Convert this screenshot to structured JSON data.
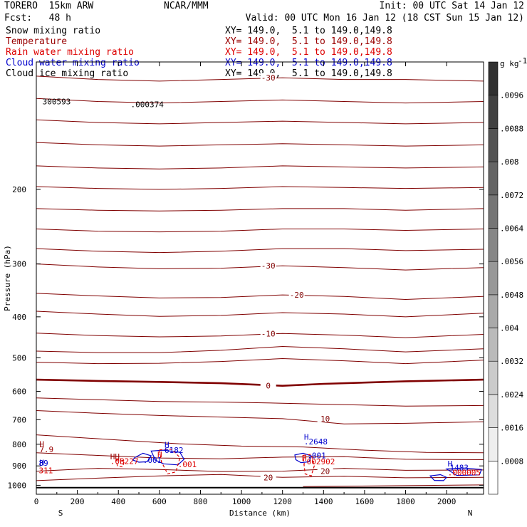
{
  "header": {
    "model": "TORERO  15km ARW",
    "center": "NCAR/MMM",
    "init": "Init: 00 UTC Sat 14 Jan 12",
    "fcst": "Fcst:   48 h",
    "valid": "Valid: 00 UTC Mon 16 Jan 12 (18 CST Sun 15 Jan 12)"
  },
  "fields": [
    {
      "label": "Snow mixing ratio",
      "xy": "XY= 149.0,  5.1 to 149.0,149.8",
      "color": "#000000"
    },
    {
      "label": "Temperature",
      "xy": "XY= 149.0,  5.1 to 149.0,149.8",
      "color": "#990000"
    },
    {
      "label": "Rain water mixing ratio",
      "xy": "XY= 149.0,  5.1 to 149.0,149.8",
      "color": "#dd0000"
    },
    {
      "label": "Cloud water mixing ratio",
      "xy": "XY= 149.0,  5.1 to 149.0,149.8",
      "color": "#0000cc"
    },
    {
      "label": "Cloud ice mixing ratio",
      "xy": "XY= 149.0,  5.1 to 149.0,149.8",
      "color": "#000000"
    }
  ],
  "chart_data": {
    "type": "contour",
    "xlabel": "Distance (km)",
    "ylabel": "Pressure (hPa)",
    "xlim": [
      0,
      2180
    ],
    "ylim": [
      1050,
      100
    ],
    "y_scale": "log",
    "x_ticks": [
      0,
      200,
      400,
      600,
      800,
      1000,
      1200,
      1400,
      1600,
      1800,
      2000
    ],
    "y_ticks": [
      200,
      300,
      400,
      500,
      600,
      700,
      800,
      900,
      1000
    ],
    "x_end_labels": {
      "left": "S",
      "right": "N"
    },
    "colorbar": {
      "unit": "g kg",
      "unit_sup": "-1",
      "levels": [
        ".0008",
        ".0016",
        ".0024",
        ".0032",
        ".004",
        ".0048",
        ".0056",
        ".0064",
        ".0072",
        ".008",
        ".0088",
        ".0096"
      ],
      "color_low": "#ffffff",
      "color_high": "#303030"
    },
    "temperature_contours": [
      {
        "label": "-30",
        "points": [
          [
            0,
            108
          ],
          [
            300,
            110
          ],
          [
            600,
            111
          ],
          [
            900,
            110
          ],
          [
            1200,
            109
          ],
          [
            1500,
            110
          ],
          [
            1800,
            110
          ],
          [
            2180,
            111
          ]
        ]
      },
      {
        "label": "",
        "points": [
          [
            0,
            122
          ],
          [
            300,
            124
          ],
          [
            600,
            125
          ],
          [
            900,
            124
          ],
          [
            1200,
            123
          ],
          [
            1500,
            124
          ],
          [
            1800,
            125
          ],
          [
            2180,
            124
          ]
        ]
      },
      {
        "label": "",
        "points": [
          [
            0,
            137
          ],
          [
            300,
            139
          ],
          [
            600,
            140
          ],
          [
            900,
            139
          ],
          [
            1200,
            138
          ],
          [
            1500,
            139
          ],
          [
            1800,
            140
          ],
          [
            2180,
            139
          ]
        ]
      },
      {
        "label": "",
        "points": [
          [
            0,
            155
          ],
          [
            300,
            157
          ],
          [
            600,
            158
          ],
          [
            900,
            157
          ],
          [
            1200,
            156
          ],
          [
            1500,
            157
          ],
          [
            1800,
            158
          ],
          [
            2180,
            157
          ]
        ]
      },
      {
        "label": "",
        "points": [
          [
            0,
            176
          ],
          [
            300,
            178
          ],
          [
            600,
            179
          ],
          [
            900,
            178
          ],
          [
            1200,
            176
          ],
          [
            1500,
            177
          ],
          [
            1800,
            178
          ],
          [
            2180,
            177
          ]
        ]
      },
      {
        "label": "",
        "points": [
          [
            0,
            197
          ],
          [
            300,
            199
          ],
          [
            600,
            200
          ],
          [
            900,
            199
          ],
          [
            1200,
            197
          ],
          [
            1500,
            198
          ],
          [
            1800,
            199
          ],
          [
            2180,
            198
          ]
        ]
      },
      {
        "label": "",
        "points": [
          [
            0,
            222
          ],
          [
            300,
            224
          ],
          [
            600,
            225
          ],
          [
            900,
            224
          ],
          [
            1200,
            222
          ],
          [
            1500,
            222
          ],
          [
            1800,
            224
          ],
          [
            2180,
            222
          ]
        ]
      },
      {
        "label": "",
        "points": [
          [
            0,
            248
          ],
          [
            300,
            251
          ],
          [
            600,
            252
          ],
          [
            900,
            251
          ],
          [
            1200,
            248
          ],
          [
            1500,
            248
          ],
          [
            1800,
            250
          ],
          [
            2180,
            248
          ]
        ]
      },
      {
        "label": "",
        "points": [
          [
            0,
            276
          ],
          [
            300,
            280
          ],
          [
            600,
            282
          ],
          [
            900,
            280
          ],
          [
            1200,
            276
          ],
          [
            1500,
            276
          ],
          [
            1800,
            279
          ],
          [
            2180,
            277
          ]
        ]
      },
      {
        "label": "-30",
        "points": [
          [
            0,
            300
          ],
          [
            300,
            305
          ],
          [
            600,
            308
          ],
          [
            900,
            307
          ],
          [
            1200,
            303
          ],
          [
            1500,
            306
          ],
          [
            1800,
            310
          ],
          [
            2180,
            306
          ]
        ]
      },
      {
        "label": "-20",
        "points": [
          [
            0,
            352
          ],
          [
            300,
            357
          ],
          [
            600,
            361
          ],
          [
            900,
            360
          ],
          [
            1200,
            355
          ],
          [
            1500,
            358
          ],
          [
            1800,
            364
          ],
          [
            2180,
            358
          ]
        ]
      },
      {
        "label": "",
        "points": [
          [
            0,
            388
          ],
          [
            300,
            394
          ],
          [
            600,
            399
          ],
          [
            900,
            397
          ],
          [
            1200,
            391
          ],
          [
            1500,
            394
          ],
          [
            1800,
            400
          ],
          [
            2180,
            392
          ]
        ]
      },
      {
        "label": "-10",
        "points": [
          [
            0,
            437
          ],
          [
            300,
            443
          ],
          [
            600,
            446
          ],
          [
            900,
            444
          ],
          [
            1200,
            438
          ],
          [
            1500,
            442
          ],
          [
            1800,
            448
          ],
          [
            2180,
            440
          ]
        ]
      },
      {
        "label": "",
        "points": [
          [
            0,
            482
          ],
          [
            300,
            486
          ],
          [
            600,
            486
          ],
          [
            900,
            480
          ],
          [
            1200,
            470
          ],
          [
            1500,
            476
          ],
          [
            1800,
            484
          ],
          [
            2180,
            476
          ]
        ]
      },
      {
        "label": "",
        "points": [
          [
            0,
            512
          ],
          [
            300,
            516
          ],
          [
            600,
            515
          ],
          [
            900,
            510
          ],
          [
            1200,
            502
          ],
          [
            1500,
            508
          ],
          [
            1800,
            516
          ],
          [
            2180,
            506
          ]
        ]
      },
      {
        "label": "0",
        "points": [
          [
            0,
            563
          ],
          [
            300,
            567
          ],
          [
            600,
            570
          ],
          [
            900,
            574
          ],
          [
            1200,
            582
          ],
          [
            1400,
            576
          ],
          [
            1800,
            568
          ],
          [
            2180,
            563
          ]
        ]
      },
      {
        "label": "",
        "points": [
          [
            0,
            622
          ],
          [
            300,
            628
          ],
          [
            600,
            634
          ],
          [
            900,
            636
          ],
          [
            1200,
            640
          ],
          [
            1500,
            645
          ],
          [
            1800,
            650
          ],
          [
            2180,
            648
          ]
        ]
      },
      {
        "label": "10",
        "points": [
          [
            0,
            666
          ],
          [
            300,
            676
          ],
          [
            600,
            684
          ],
          [
            900,
            690
          ],
          [
            1200,
            696
          ],
          [
            1500,
            716
          ],
          [
            1800,
            714
          ],
          [
            2180,
            708
          ]
        ]
      },
      {
        "label": "",
        "points": [
          [
            0,
            760
          ],
          [
            400,
            782
          ],
          [
            700,
            798
          ],
          [
            1000,
            808
          ],
          [
            1300,
            812
          ],
          [
            1600,
            826
          ],
          [
            1900,
            836
          ],
          [
            2180,
            838
          ]
        ]
      },
      {
        "label": "",
        "points": [
          [
            0,
            838
          ],
          [
            300,
            850
          ],
          [
            600,
            862
          ],
          [
            900,
            866
          ],
          [
            1200,
            858
          ],
          [
            1500,
            856
          ],
          [
            1800,
            868
          ],
          [
            2180,
            870
          ]
        ]
      },
      {
        "label": "20",
        "points": [
          [
            0,
            926
          ],
          [
            300,
            912
          ],
          [
            600,
            918
          ],
          [
            900,
            928
          ],
          [
            1200,
            926
          ],
          [
            1500,
            912
          ],
          [
            1800,
            922
          ],
          [
            2180,
            920
          ]
        ]
      },
      {
        "label": "20",
        "points": [
          [
            0,
            975
          ],
          [
            300,
            962
          ],
          [
            600,
            950
          ],
          [
            900,
            943
          ],
          [
            1200,
            958
          ],
          [
            1500,
            952
          ],
          [
            1800,
            960
          ],
          [
            2180,
            958
          ]
        ]
      },
      {
        "label": "",
        "points": [
          [
            1300,
            1007
          ],
          [
            1500,
            1005
          ],
          [
            1800,
            1002
          ],
          [
            2180,
            998
          ]
        ]
      }
    ],
    "annotations": [
      {
        "text": "H",
        "x": 15,
        "y": 812,
        "color": "#990000"
      },
      {
        "text": "7.9",
        "x": 15,
        "y": 835,
        "color": "#990000"
      },
      {
        "text": "H",
        "x": 15,
        "y": 898,
        "color": "#0000cc"
      },
      {
        "text": "89",
        "x": 12,
        "y": 900,
        "color": "#0000cc"
      },
      {
        "text": "311",
        "x": 12,
        "y": 936,
        "color": "#dd0000"
      },
      {
        "text": "HH",
        "x": 360,
        "y": 868,
        "color": "#990000"
      },
      {
        "text": ".0B227",
        "x": 360,
        "y": 890,
        "color": "#dd0000"
      },
      {
        "text": "H",
        "x": 625,
        "y": 815,
        "color": "#0000cc"
      },
      {
        "text": "6182",
        "x": 625,
        "y": 838,
        "color": "#0000cc"
      },
      {
        "text": "H",
        "x": 590,
        "y": 858,
        "color": "#dd0000"
      },
      {
        "text": ".001",
        "x": 520,
        "y": 885,
        "color": "#0000cc"
      },
      {
        "text": ".001",
        "x": 690,
        "y": 906,
        "color": "#dd0000"
      },
      {
        "text": "H",
        "x": 1305,
        "y": 780,
        "color": "#0000cc"
      },
      {
        "text": ".2648",
        "x": 1305,
        "y": 800,
        "color": "#0000cc"
      },
      {
        "text": ".001",
        "x": 1320,
        "y": 864,
        "color": "#0000cc"
      },
      {
        "text": "H",
        "x": 1295,
        "y": 876,
        "color": "#dd0000"
      },
      {
        "text": ".002902",
        "x": 1295,
        "y": 892,
        "color": "#dd0000"
      },
      {
        "text": "H",
        "x": 2005,
        "y": 902,
        "color": "#0000cc"
      },
      {
        "text": "1483",
        "x": 2015,
        "y": 922,
        "color": "#0000cc"
      },
      {
        "text": ".000005",
        "x": 2005,
        "y": 948,
        "color": "#dd0000"
      },
      {
        "text": ".000374",
        "x": 460,
        "y": 128,
        "color": "#000000"
      },
      {
        "text": "300593",
        "x": 30,
        "y": 126,
        "color": "#000000"
      }
    ],
    "cloud_water_blobs": [
      {
        "points": [
          [
            480,
            860
          ],
          [
            520,
            840
          ],
          [
            560,
            852
          ],
          [
            540,
            880
          ],
          [
            500,
            882
          ],
          [
            470,
            872
          ]
        ]
      },
      {
        "points": [
          [
            560,
            830
          ],
          [
            620,
            826
          ],
          [
            700,
            836
          ],
          [
            720,
            868
          ],
          [
            690,
            895
          ],
          [
            620,
            890
          ],
          [
            580,
            872
          ]
        ]
      },
      {
        "points": [
          [
            1260,
            848
          ],
          [
            1300,
            840
          ],
          [
            1340,
            852
          ],
          [
            1330,
            880
          ],
          [
            1290,
            884
          ],
          [
            1265,
            870
          ]
        ]
      },
      {
        "points": [
          [
            1920,
            950
          ],
          [
            1970,
            944
          ],
          [
            2000,
            958
          ],
          [
            1985,
            975
          ],
          [
            1940,
            974
          ]
        ]
      },
      {
        "points": [
          [
            2000,
            915
          ],
          [
            2080,
            910
          ],
          [
            2170,
            918
          ],
          [
            2160,
            945
          ],
          [
            2050,
            948
          ]
        ]
      }
    ],
    "rain_water_blobs": [
      {
        "points": [
          [
            600,
            825
          ],
          [
            660,
            822
          ],
          [
            700,
            860
          ],
          [
            680,
            930
          ],
          [
            640,
            940
          ],
          [
            610,
            880
          ]
        ]
      },
      {
        "points": [
          [
            1300,
            850
          ],
          [
            1340,
            845
          ],
          [
            1355,
            900
          ],
          [
            1340,
            950
          ],
          [
            1310,
            940
          ]
        ]
      },
      {
        "points": [
          [
            390,
            870
          ],
          [
            430,
            875
          ],
          [
            420,
            905
          ],
          [
            395,
            900
          ]
        ]
      }
    ]
  }
}
